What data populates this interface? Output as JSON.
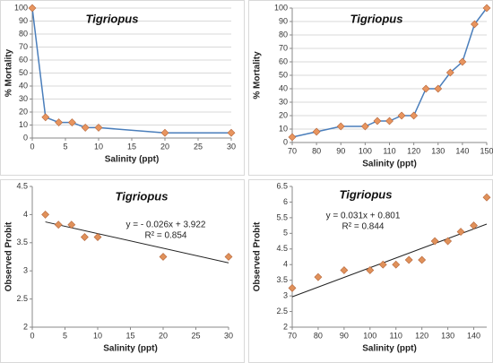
{
  "chart_data": [
    {
      "type": "line",
      "title": "Tigriopus",
      "x_label": "Salinity (ppt)",
      "y_label": "% Mortality",
      "x": [
        0,
        2,
        4,
        6,
        8,
        10,
        20,
        30
      ],
      "values": [
        100,
        16,
        12,
        12,
        8,
        8,
        4,
        4
      ],
      "color": "#4a7ebb",
      "marker_color": "#e8955f",
      "xlim": [
        0,
        30
      ],
      "xticks": [
        0,
        5,
        10,
        15,
        20,
        25,
        30
      ],
      "ylim": [
        0,
        100
      ],
      "yticks": [
        0,
        10,
        20,
        30,
        40,
        50,
        60,
        70,
        80,
        90,
        100
      ],
      "grid": true
    },
    {
      "type": "line",
      "title": "Tigriopus",
      "x_label": "Salinity (ppt)",
      "y_label": "% Mortality",
      "x": [
        70,
        80,
        90,
        100,
        105,
        110,
        115,
        120,
        125,
        130,
        135,
        140,
        145,
        150
      ],
      "values": [
        4,
        8,
        12,
        12,
        16,
        16,
        20,
        20,
        40,
        40,
        52,
        60,
        88,
        100
      ],
      "color": "#4a7ebb",
      "marker_color": "#e8955f",
      "xlim": [
        70,
        150
      ],
      "xticks": [
        70,
        80,
        90,
        100,
        110,
        120,
        130,
        140,
        150
      ],
      "ylim": [
        0,
        100
      ],
      "yticks": [
        0,
        10,
        20,
        30,
        40,
        50,
        60,
        70,
        80,
        90,
        100
      ],
      "grid": true
    },
    {
      "type": "scatter",
      "title": "Tigriopus",
      "x_label": "Salinity (ppt)",
      "y_label": "Observed Probit",
      "x": [
        2,
        4,
        6,
        8,
        10,
        20,
        30
      ],
      "values": [
        4.0,
        3.82,
        3.82,
        3.6,
        3.6,
        3.25,
        3.25
      ],
      "marker_color": "#e0915a",
      "trendline": {
        "slope": -0.026,
        "intercept": 3.922
      },
      "annotations": [
        "y = - 0.026x + 3.922",
        "R² = 0.854"
      ],
      "xlim": [
        0,
        30
      ],
      "xticks": [
        0,
        5,
        10,
        15,
        20,
        25,
        30
      ],
      "ylim": [
        2,
        4.5
      ],
      "yticks": [
        2,
        2.5,
        3,
        3.5,
        4,
        4.5
      ],
      "grid": false
    },
    {
      "type": "scatter",
      "title": "Tigriopus",
      "x_label": "Salinity (ppt)",
      "y_label": "Observed Probit",
      "x": [
        70,
        80,
        90,
        100,
        105,
        110,
        115,
        120,
        125,
        130,
        135,
        140,
        145
      ],
      "values": [
        3.25,
        3.6,
        3.82,
        3.82,
        4.0,
        4.0,
        4.15,
        4.15,
        4.75,
        4.75,
        5.05,
        5.25,
        6.15
      ],
      "marker_color": "#e0915a",
      "trendline": {
        "slope": 0.031,
        "intercept": 0.801
      },
      "annotations": [
        "y = 0.031x + 0.801",
        "R² = 0.844"
      ],
      "xlim": [
        70,
        145
      ],
      "xticks": [
        70,
        80,
        90,
        100,
        110,
        120,
        130,
        140
      ],
      "ylim": [
        2,
        6.5
      ],
      "yticks": [
        2,
        2.5,
        3,
        3.5,
        4,
        4.5,
        5,
        5.5,
        6,
        6.5
      ],
      "grid": false
    }
  ]
}
